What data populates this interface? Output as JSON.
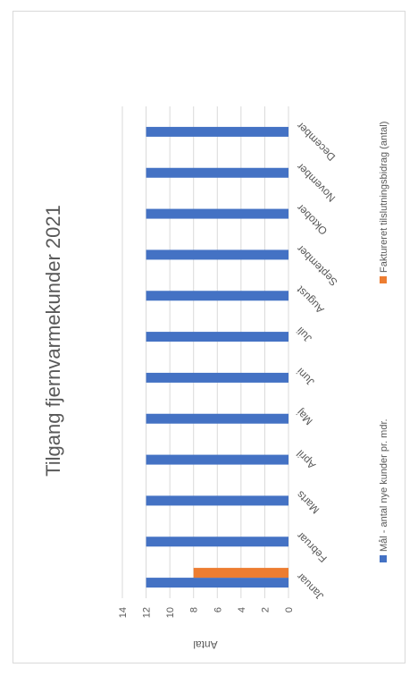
{
  "chart_data": {
    "type": "bar",
    "title": "Tilgang fjernvarmekunder 2021",
    "ylabel": "Antal",
    "xlabel": "",
    "ylim": [
      0,
      14
    ],
    "yticks": [
      0,
      2,
      4,
      6,
      8,
      10,
      12,
      14
    ],
    "categories": [
      "Januar",
      "Februar",
      "Marts",
      "April",
      "Maj",
      "Juni",
      "Juli",
      "August",
      "September",
      "Oktober",
      "November",
      "December"
    ],
    "series": [
      {
        "name": "Mål - antal nye kunder pr. mdr.",
        "color": "#4472c4",
        "values": [
          12,
          12,
          12,
          12,
          12,
          12,
          12,
          12,
          12,
          12,
          12,
          12
        ]
      },
      {
        "name": "Faktureret tilslutningsbidrag (antal)",
        "color": "#ed7d31",
        "values": [
          8,
          0,
          0,
          0,
          0,
          0,
          0,
          0,
          0,
          0,
          0,
          0
        ]
      }
    ],
    "grid": true,
    "legend_position": "bottom"
  }
}
